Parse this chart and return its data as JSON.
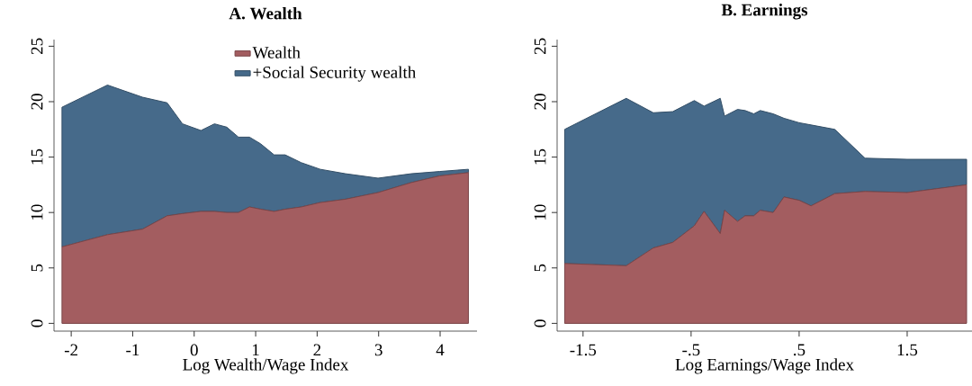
{
  "chart_data": [
    {
      "type": "area",
      "title": "A. Wealth",
      "xlabel": "Log Wealth/Wage Index",
      "stacked": true,
      "legend": "top",
      "x": [
        -2.15,
        -1.41,
        -0.84,
        -0.44,
        -0.19,
        0.11,
        0.33,
        0.53,
        0.72,
        0.9,
        1.08,
        1.3,
        1.48,
        1.74,
        2.05,
        2.46,
        2.99,
        3.53,
        3.99,
        4.46
      ],
      "xlim": [
        -2.28,
        4.6
      ],
      "xticks": [
        -2,
        -1,
        0,
        1,
        2,
        3,
        4
      ],
      "ylim": [
        -0.7,
        25.6
      ],
      "yticks": [
        0,
        5,
        10,
        15,
        20,
        25
      ],
      "series": [
        {
          "name": "Wealth",
          "color": "#a35d60",
          "values": [
            6.9,
            8.0,
            8.5,
            9.7,
            9.9,
            10.1,
            10.1,
            10.0,
            10.0,
            10.5,
            10.3,
            10.1,
            10.3,
            10.5,
            10.9,
            11.2,
            11.8,
            12.7,
            13.3,
            13.6
          ]
        },
        {
          "name": "+Social Security wealth",
          "color": "#466a8a",
          "values": [
            12.6,
            13.5,
            11.9,
            10.2,
            8.1,
            7.3,
            7.9,
            7.7,
            6.8,
            6.3,
            5.9,
            5.1,
            4.9,
            4.0,
            3.0,
            2.3,
            1.3,
            0.8,
            0.4,
            0.3
          ]
        }
      ]
    },
    {
      "type": "area",
      "title": "B. Earnings",
      "xlabel": "Log Earnings/Wage Index",
      "stacked": true,
      "x": [
        -1.67,
        -1.1,
        -0.85,
        -0.67,
        -0.47,
        -0.38,
        -0.23,
        -0.19,
        -0.07,
        0.0,
        0.08,
        0.14,
        0.26,
        0.36,
        0.5,
        0.61,
        0.83,
        1.11,
        1.5,
        2.05
      ],
      "xlim": [
        -1.74,
        2.1
      ],
      "xticks": [
        {
          "value": -1.5,
          "label": "-1.5"
        },
        {
          "value": -0.5,
          "label": "-.5"
        },
        {
          "value": 0.5,
          "label": ".5"
        },
        {
          "value": 1.5,
          "label": "1.5"
        }
      ],
      "ylim": [
        -0.7,
        25.6
      ],
      "yticks": [
        0,
        5,
        10,
        15,
        20,
        25
      ],
      "series": [
        {
          "color": "#a35d60",
          "values": [
            5.4,
            5.2,
            6.8,
            7.3,
            8.8,
            10.1,
            8.1,
            10.2,
            9.2,
            9.7,
            9.7,
            10.2,
            10.0,
            11.4,
            11.1,
            10.6,
            11.7,
            11.9,
            11.8,
            12.5
          ]
        },
        {
          "color": "#466a8a",
          "values": [
            12.1,
            15.1,
            12.2,
            11.8,
            11.3,
            9.5,
            12.2,
            8.5,
            10.1,
            9.5,
            9.2,
            9.0,
            8.9,
            7.1,
            7.0,
            7.3,
            5.8,
            3.0,
            3.0,
            2.3
          ]
        }
      ]
    }
  ]
}
